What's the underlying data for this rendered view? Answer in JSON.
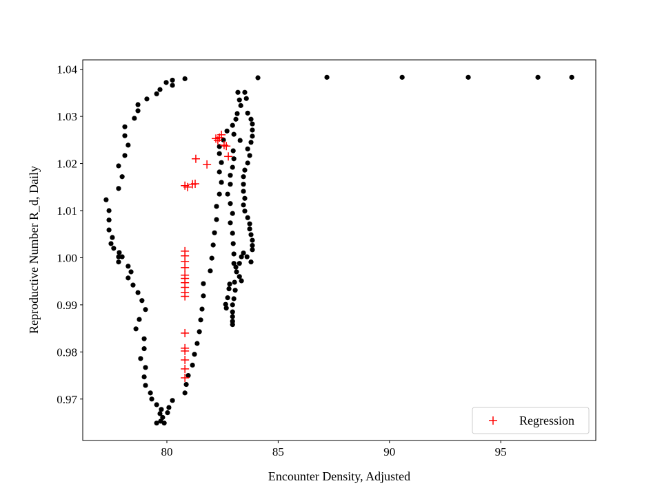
{
  "chart_data": {
    "type": "scatter",
    "title": "",
    "xlabel": "Encounter Density, Adjusted",
    "ylabel": "Reproductive Number R_d, Daily",
    "xlim": [
      76.22,
      99.27
    ],
    "ylim": [
      0.9612,
      1.042
    ],
    "xticks": [
      80,
      85,
      90,
      95
    ],
    "xtick_labels": [
      "80",
      "85",
      "90",
      "95"
    ],
    "yticks": [
      0.97,
      0.98,
      0.99,
      1.0,
      1.01,
      1.02,
      1.03,
      1.04
    ],
    "ytick_labels": [
      "0.97",
      "0.98",
      "0.99",
      "1.00",
      "1.01",
      "1.02",
      "1.03",
      "1.04"
    ],
    "grid": false,
    "legend": {
      "placement": "bottom-right",
      "entries": [
        "Regression"
      ]
    },
    "series": [
      {
        "name": "Data",
        "marker": "circle",
        "color": "#000000",
        "points": [
          [
            80.81,
            1.038
          ],
          [
            80.25,
            1.0377
          ],
          [
            80.25,
            1.0366
          ],
          [
            79.97,
            1.0372
          ],
          [
            79.69,
            1.0357
          ],
          [
            79.54,
            1.0348
          ],
          [
            79.1,
            1.0337
          ],
          [
            78.7,
            1.0325
          ],
          [
            78.7,
            1.0312
          ],
          [
            78.54,
            1.0296
          ],
          [
            78.11,
            1.0278
          ],
          [
            78.11,
            1.0259
          ],
          [
            78.26,
            1.0239
          ],
          [
            78.11,
            1.0217
          ],
          [
            77.83,
            1.0195
          ],
          [
            77.99,
            1.0172
          ],
          [
            77.83,
            1.0147
          ],
          [
            77.27,
            1.0123
          ],
          [
            77.4,
            1.01
          ],
          [
            77.4,
            1.008
          ],
          [
            77.4,
            1.0059
          ],
          [
            77.55,
            1.0043
          ],
          [
            77.49,
            1.003
          ],
          [
            77.61,
            1.002
          ],
          [
            77.86,
            1.0011
          ],
          [
            77.83,
            1.0002
          ],
          [
            77.99,
            1.0002
          ],
          [
            77.83,
            0.9991
          ],
          [
            78.26,
            0.9982
          ],
          [
            78.39,
            0.997
          ],
          [
            78.26,
            0.9957
          ],
          [
            78.48,
            0.9942
          ],
          [
            78.7,
            0.9926
          ],
          [
            78.88,
            0.9909
          ],
          [
            79.04,
            0.989
          ],
          [
            78.76,
            0.9869
          ],
          [
            78.61,
            0.9849
          ],
          [
            78.98,
            0.9828
          ],
          [
            78.98,
            0.9807
          ],
          [
            78.82,
            0.9786
          ],
          [
            79.04,
            0.9767
          ],
          [
            78.98,
            0.9747
          ],
          [
            79.04,
            0.9729
          ],
          [
            79.26,
            0.9713
          ],
          [
            79.32,
            0.97
          ],
          [
            79.54,
            0.9688
          ],
          [
            79.75,
            0.9678
          ],
          [
            79.69,
            0.9669
          ],
          [
            80.03,
            0.9671
          ],
          [
            80.09,
            0.9682
          ],
          [
            80.25,
            0.9697
          ],
          [
            79.81,
            0.9661
          ],
          [
            79.54,
            0.9649
          ],
          [
            79.88,
            0.9649
          ],
          [
            79.72,
            0.9653
          ],
          [
            80.81,
            0.9713
          ],
          [
            80.87,
            0.9731
          ],
          [
            80.96,
            0.975
          ],
          [
            81.15,
            0.9772
          ],
          [
            81.24,
            0.9795
          ],
          [
            81.36,
            0.9818
          ],
          [
            81.46,
            0.9843
          ],
          [
            81.52,
            0.9868
          ],
          [
            81.58,
            0.9891
          ],
          [
            81.64,
            0.9919
          ],
          [
            81.64,
            0.9945
          ],
          [
            81.95,
            0.9972
          ],
          [
            82.02,
            0.9999
          ],
          [
            82.08,
            1.0027
          ],
          [
            82.14,
            1.0053
          ],
          [
            82.23,
            1.0081
          ],
          [
            82.23,
            1.0109
          ],
          [
            82.36,
            1.0135
          ],
          [
            82.45,
            1.016
          ],
          [
            82.36,
            1.0182
          ],
          [
            82.45,
            1.0202
          ],
          [
            82.36,
            1.0221
          ],
          [
            82.36,
            1.0236
          ],
          [
            82.54,
            1.025
          ],
          [
            82.7,
            1.0269
          ],
          [
            82.95,
            1.0281
          ],
          [
            83.1,
            1.0294
          ],
          [
            83.16,
            1.0306
          ],
          [
            83.32,
            1.0323
          ],
          [
            83.26,
            1.0335
          ],
          [
            83.19,
            1.0351
          ],
          [
            83.5,
            1.0351
          ],
          [
            83.57,
            1.0338
          ],
          [
            83.63,
            1.0307
          ],
          [
            83.78,
            1.0294
          ],
          [
            83.84,
            1.0284
          ],
          [
            83.84,
            1.0271
          ],
          [
            83.84,
            1.0258
          ],
          [
            83.78,
            1.0245
          ],
          [
            83.63,
            1.0231
          ],
          [
            83.72,
            1.0217
          ],
          [
            83.63,
            1.0201
          ],
          [
            83.5,
            1.0186
          ],
          [
            83.44,
            1.0172
          ],
          [
            83.44,
            1.0156
          ],
          [
            83.44,
            1.0141
          ],
          [
            83.5,
            1.0126
          ],
          [
            83.44,
            1.0112
          ],
          [
            83.5,
            1.0099
          ],
          [
            83.63,
            1.0085
          ],
          [
            83.72,
            1.0072
          ],
          [
            83.72,
            1.0061
          ],
          [
            83.78,
            1.0049
          ],
          [
            83.84,
            1.0037
          ],
          [
            83.84,
            1.0026
          ],
          [
            83.84,
            1.0017
          ],
          [
            83.78,
            0.9991
          ],
          [
            83.44,
            1.001
          ],
          [
            83.35,
            1.0002
          ],
          [
            83.6,
            1.0002
          ],
          [
            83.26,
            0.9988
          ],
          [
            83.1,
            0.998
          ],
          [
            83.13,
            0.997
          ],
          [
            83.26,
            0.996
          ],
          [
            83.35,
            0.9951
          ],
          [
            83.04,
            0.9948
          ],
          [
            82.82,
            0.9944
          ],
          [
            82.79,
            0.9934
          ],
          [
            82.73,
            0.9915
          ],
          [
            82.64,
            0.9901
          ],
          [
            82.67,
            0.9893
          ],
          [
            82.95,
            0.9885
          ],
          [
            82.95,
            0.9875
          ],
          [
            82.95,
            0.9865
          ],
          [
            82.95,
            0.9858
          ],
          [
            83.01,
            1.0262
          ],
          [
            83.29,
            1.0249
          ],
          [
            82.98,
            1.0227
          ],
          [
            83.01,
            1.021
          ],
          [
            82.95,
            1.0192
          ],
          [
            82.85,
            1.0175
          ],
          [
            82.85,
            1.0156
          ],
          [
            82.73,
            1.0135
          ],
          [
            82.85,
            1.0115
          ],
          [
            82.95,
            1.0094
          ],
          [
            82.85,
            1.0074
          ],
          [
            82.95,
            1.0052
          ],
          [
            82.98,
            1.003
          ],
          [
            83.01,
            1.0008
          ],
          [
            83.01,
            0.9988
          ],
          [
            83.07,
            0.9931
          ],
          [
            83.01,
            0.9913
          ],
          [
            82.95,
            0.99
          ],
          [
            84.09,
            1.0382
          ],
          [
            87.19,
            1.0383
          ],
          [
            90.57,
            1.0383
          ],
          [
            93.54,
            1.0383
          ],
          [
            96.67,
            1.0383
          ],
          [
            98.19,
            1.0383
          ]
        ]
      },
      {
        "name": "Regression",
        "marker": "plus",
        "color": "#ff0000",
        "points": [
          [
            80.81,
            1.0153
          ],
          [
            80.93,
            1.015
          ],
          [
            81.15,
            1.0156
          ],
          [
            81.27,
            1.0157
          ],
          [
            81.3,
            1.021
          ],
          [
            81.8,
            1.0198
          ],
          [
            82.2,
            1.0253
          ],
          [
            82.36,
            1.0255
          ],
          [
            82.45,
            1.0261
          ],
          [
            82.29,
            1.0249
          ],
          [
            82.57,
            1.0239
          ],
          [
            82.67,
            1.0237
          ],
          [
            82.76,
            1.0215
          ],
          [
            80.81,
            1.0014
          ],
          [
            80.81,
            1.0004
          ],
          [
            80.81,
            0.9992
          ],
          [
            80.81,
            0.9979
          ],
          [
            80.81,
            0.9963
          ],
          [
            80.81,
            0.9956
          ],
          [
            80.81,
            0.9947
          ],
          [
            80.81,
            0.9937
          ],
          [
            80.81,
            0.9926
          ],
          [
            80.81,
            0.9918
          ],
          [
            80.81,
            0.984
          ],
          [
            80.81,
            0.9808
          ],
          [
            80.81,
            0.9802
          ],
          [
            80.81,
            0.9783
          ],
          [
            80.81,
            0.9764
          ],
          [
            80.81,
            0.9745
          ]
        ]
      }
    ]
  }
}
